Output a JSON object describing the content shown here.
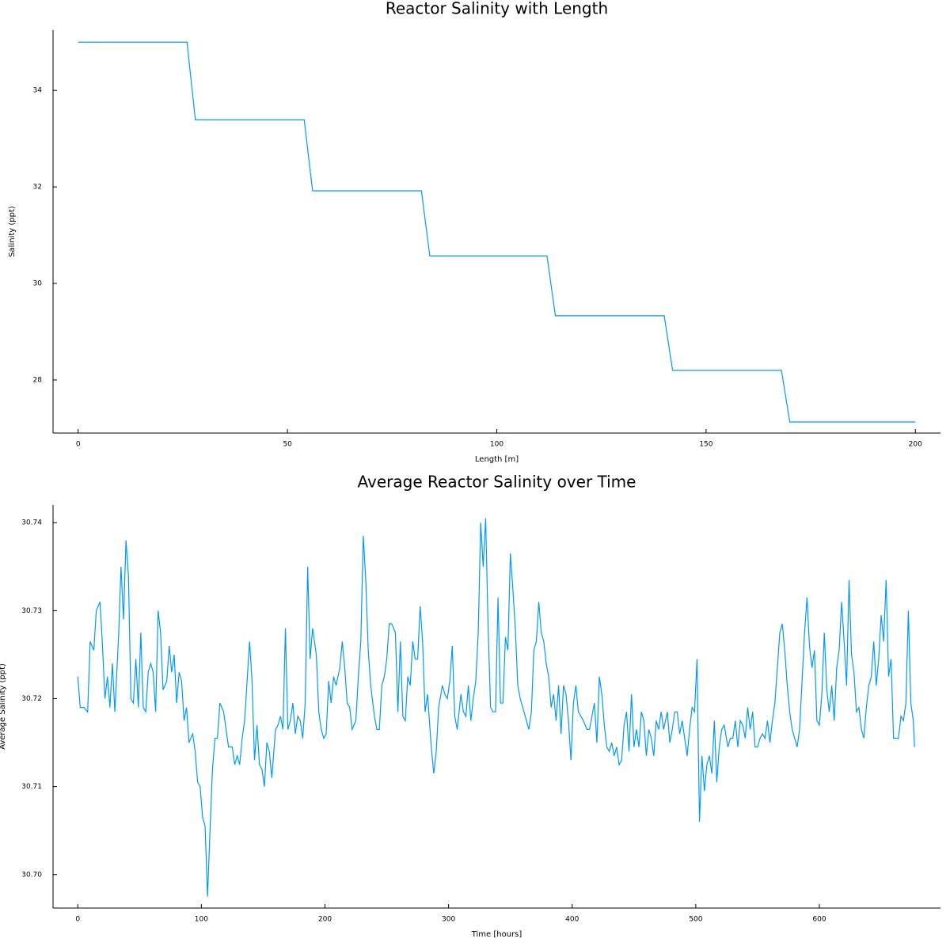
{
  "chart_data": [
    {
      "type": "line",
      "title": "Reactor Salinity with Length",
      "x_label": "Length [m]",
      "y_label": "Salinity (ppt)",
      "color": "#009af9",
      "grid": false,
      "x": [
        0,
        26,
        28,
        54,
        56,
        82,
        84,
        112,
        114,
        140,
        142,
        168,
        170,
        200
      ],
      "values": [
        35,
        35,
        33.39,
        33.39,
        31.92,
        31.92,
        30.57,
        30.57,
        29.33,
        29.33,
        28.2,
        28.2,
        27.13,
        27.13
      ],
      "xlim": [
        -6,
        206
      ],
      "ylim": [
        26.9,
        35.25
      ],
      "xticks": [
        0,
        50,
        100,
        150,
        200
      ],
      "yticks": [
        28,
        30,
        32,
        34
      ]
    },
    {
      "type": "line",
      "title": "Average Reactor Salinity over Time",
      "x_label": "Time [hours]",
      "y_label": "Average Salinity (ppt)",
      "color": "#009af9",
      "grid": false,
      "x": [
        0,
        2,
        5,
        8,
        10,
        13,
        15,
        18,
        20,
        22,
        24,
        26,
        28,
        30,
        33,
        35,
        37,
        39,
        41,
        43,
        45,
        47,
        49,
        51,
        53,
        55,
        57,
        59,
        61,
        63,
        65,
        67,
        69,
        72,
        74,
        76,
        78,
        80,
        82,
        84,
        86,
        88,
        90,
        93,
        95,
        97,
        99,
        101,
        103,
        105,
        107,
        109,
        111,
        113,
        115,
        118,
        120,
        122,
        125,
        127,
        129,
        131,
        133,
        135,
        137,
        139,
        141,
        143,
        145,
        147,
        149,
        151,
        153,
        155,
        157,
        160,
        162,
        164,
        166,
        168,
        170,
        172,
        174,
        176,
        178,
        180,
        182,
        184,
        186,
        188,
        190,
        193,
        195,
        197,
        199,
        201,
        203,
        205,
        207,
        209,
        212,
        214,
        216,
        218,
        220,
        222,
        225,
        227,
        229,
        231,
        233,
        235,
        237,
        240,
        242,
        244,
        246,
        248,
        250,
        252,
        254,
        257,
        259,
        261,
        263,
        265,
        267,
        269,
        271,
        273,
        275,
        277,
        279,
        281,
        283,
        286,
        288,
        290,
        292,
        295,
        297,
        299,
        301,
        303,
        305,
        307,
        310,
        312,
        314,
        316,
        318,
        320,
        322,
        324,
        326,
        328,
        330,
        332,
        334,
        336,
        338,
        340,
        342,
        344,
        346,
        348,
        350,
        352,
        354,
        356,
        358,
        361,
        363,
        365,
        367,
        369,
        371,
        373,
        375,
        377,
        379,
        381,
        383,
        385,
        387,
        389,
        391,
        393,
        395,
        397,
        399,
        401,
        403,
        405,
        407,
        409,
        412,
        414,
        416,
        418,
        420,
        422,
        424,
        426,
        428,
        430,
        432,
        434,
        436,
        438,
        440,
        442,
        444,
        446,
        448,
        450,
        452,
        454,
        456,
        458,
        460,
        462,
        464,
        466,
        468,
        470,
        472,
        474,
        477,
        479,
        481,
        483,
        485,
        487,
        489,
        491,
        493,
        495,
        497,
        499,
        501,
        503,
        505,
        507,
        509,
        511,
        513,
        515,
        517,
        519,
        521,
        523,
        526,
        528,
        530,
        532,
        534,
        536,
        538,
        540,
        542,
        544,
        546,
        548,
        550,
        552,
        554,
        556,
        558,
        560,
        562,
        564,
        566,
        568,
        570,
        572,
        574,
        576,
        578,
        580,
        582,
        584,
        586,
        588,
        590,
        592,
        594,
        596,
        598,
        600,
        602,
        604,
        606,
        608,
        610,
        612,
        614,
        616,
        618,
        620,
        622,
        624,
        626,
        628,
        630,
        632,
        634,
        636,
        638,
        640,
        642,
        644,
        646,
        648,
        650,
        652,
        654,
        656,
        658,
        660,
        662,
        664,
        666,
        668,
        670,
        672,
        674,
        676,
        677
      ],
      "values": [
        30.7225,
        30.719,
        30.719,
        30.7185,
        30.7265,
        30.7255,
        30.73,
        30.731,
        30.726,
        30.72,
        30.7225,
        30.719,
        30.724,
        30.7185,
        30.727,
        30.735,
        30.729,
        30.738,
        30.734,
        30.72,
        30.7195,
        30.7245,
        30.719,
        30.7275,
        30.719,
        30.7185,
        30.723,
        30.724,
        30.723,
        30.7185,
        30.73,
        30.7275,
        30.721,
        30.722,
        30.726,
        30.723,
        30.725,
        30.7195,
        30.723,
        30.722,
        30.7175,
        30.719,
        30.715,
        30.716,
        30.714,
        30.7105,
        30.71,
        30.7065,
        30.7055,
        30.6975,
        30.705,
        30.712,
        30.7155,
        30.7155,
        30.7195,
        30.7185,
        30.7165,
        30.7145,
        30.7145,
        30.7125,
        30.7135,
        30.7125,
        30.7155,
        30.7175,
        30.722,
        30.7265,
        30.722,
        30.713,
        30.717,
        30.7125,
        30.712,
        30.71,
        30.715,
        30.714,
        30.711,
        30.7165,
        30.717,
        30.718,
        30.7165,
        30.728,
        30.7165,
        30.7175,
        30.7195,
        30.716,
        30.718,
        30.7175,
        30.7155,
        30.7195,
        30.735,
        30.7245,
        30.728,
        30.725,
        30.7185,
        30.7165,
        30.7155,
        30.716,
        30.722,
        30.7195,
        30.7225,
        30.7215,
        30.7235,
        30.7265,
        30.7235,
        30.7195,
        30.719,
        30.7165,
        30.7175,
        30.7225,
        30.7265,
        30.7385,
        30.7335,
        30.7255,
        30.7215,
        30.718,
        30.7165,
        30.7165,
        30.7215,
        30.7225,
        30.7245,
        30.7285,
        30.7285,
        30.7275,
        30.7185,
        30.7265,
        30.718,
        30.7175,
        30.7225,
        30.7215,
        30.7265,
        30.7245,
        30.7245,
        30.7305,
        30.7265,
        30.7185,
        30.7205,
        30.7145,
        30.7115,
        30.714,
        30.719,
        30.7215,
        30.7205,
        30.72,
        30.722,
        30.726,
        30.718,
        30.7165,
        30.7205,
        30.7185,
        30.718,
        30.7215,
        30.7175,
        30.72,
        30.722,
        30.7275,
        30.74,
        30.735,
        30.7405,
        30.728,
        30.719,
        30.7185,
        30.7185,
        30.7315,
        30.7195,
        30.7195,
        30.727,
        30.7255,
        30.7365,
        30.7325,
        30.728,
        30.7215,
        30.72,
        30.7185,
        30.7175,
        30.7165,
        30.7185,
        30.7255,
        30.7265,
        30.731,
        30.7275,
        30.7265,
        30.724,
        30.7225,
        30.719,
        30.7205,
        30.7175,
        30.7215,
        30.716,
        30.7215,
        30.7205,
        30.7175,
        30.713,
        30.7195,
        30.7215,
        30.7185,
        30.718,
        30.7175,
        30.7165,
        30.7165,
        30.718,
        30.7195,
        30.715,
        30.7225,
        30.7205,
        30.717,
        30.7145,
        30.714,
        30.715,
        30.7135,
        30.7145,
        30.7125,
        30.713,
        30.717,
        30.7185,
        30.714,
        30.7205,
        30.7145,
        30.7165,
        30.7145,
        30.7185,
        30.7175,
        30.7135,
        30.7165,
        30.7155,
        30.7135,
        30.7175,
        30.7165,
        30.7185,
        30.7165,
        30.7185,
        30.715,
        30.7165,
        30.7185,
        30.7185,
        30.716,
        30.7175,
        30.7155,
        30.7135,
        30.7165,
        30.719,
        30.7185,
        30.7245,
        30.706,
        30.7135,
        30.7095,
        30.7125,
        30.7135,
        30.7115,
        30.7175,
        30.7105,
        30.7145,
        30.7165,
        30.717,
        30.7145,
        30.7155,
        30.7155,
        30.7175,
        30.7145,
        30.7175,
        30.717,
        30.7155,
        30.719,
        30.7165,
        30.7185,
        30.7145,
        30.7145,
        30.7155,
        30.716,
        30.7155,
        30.7175,
        30.715,
        30.7175,
        30.7195,
        30.7235,
        30.7275,
        30.7285,
        30.7255,
        30.7215,
        30.7185,
        30.7165,
        30.7155,
        30.7145,
        30.7165,
        30.722,
        30.7275,
        30.7315,
        30.726,
        30.7235,
        30.7255,
        30.7175,
        30.717,
        30.7205,
        30.7275,
        30.721,
        30.7185,
        30.7215,
        30.7175,
        30.7235,
        30.7255,
        30.731,
        30.7265,
        30.7215,
        30.7335,
        30.725,
        30.723,
        30.7185,
        30.719,
        30.7165,
        30.7155,
        30.719,
        30.7215,
        30.7225,
        30.7265,
        30.7215,
        30.7245,
        30.7295,
        30.7265,
        30.7335,
        30.7225,
        30.7245,
        30.7155,
        30.7155,
        30.7155,
        30.718,
        30.7175,
        30.7195,
        30.73,
        30.7195,
        30.7175,
        30.7145
      ],
      "xlim": [
        -20,
        698
      ],
      "ylim": [
        30.6962,
        30.742
      ],
      "xticks": [
        0,
        100,
        200,
        300,
        400,
        500,
        600
      ],
      "yticks": [
        {
          "value": 30.7,
          "label": "30.70"
        },
        30.71,
        30.72,
        30.73,
        30.74
      ]
    }
  ]
}
